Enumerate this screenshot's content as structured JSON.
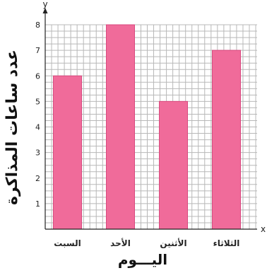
{
  "chart_data": {
    "type": "bar",
    "categories": [
      "السبت",
      "الأحد",
      "الأثنين",
      "الثلاثاء"
    ],
    "values": [
      6,
      8,
      5,
      7
    ],
    "xlabel": "اليـــوم",
    "ylabel": "عدد ساعات المذاكرة",
    "x_axis_letter": "x",
    "y_axis_letter": "y",
    "ylim": [
      0,
      8
    ],
    "y_ticks": [
      "1",
      "2",
      "3",
      "4",
      "5",
      "6",
      "7",
      "8"
    ],
    "grid": true,
    "bar_color": "#f06b9a",
    "bar_edge_color": "#d94a7f"
  }
}
